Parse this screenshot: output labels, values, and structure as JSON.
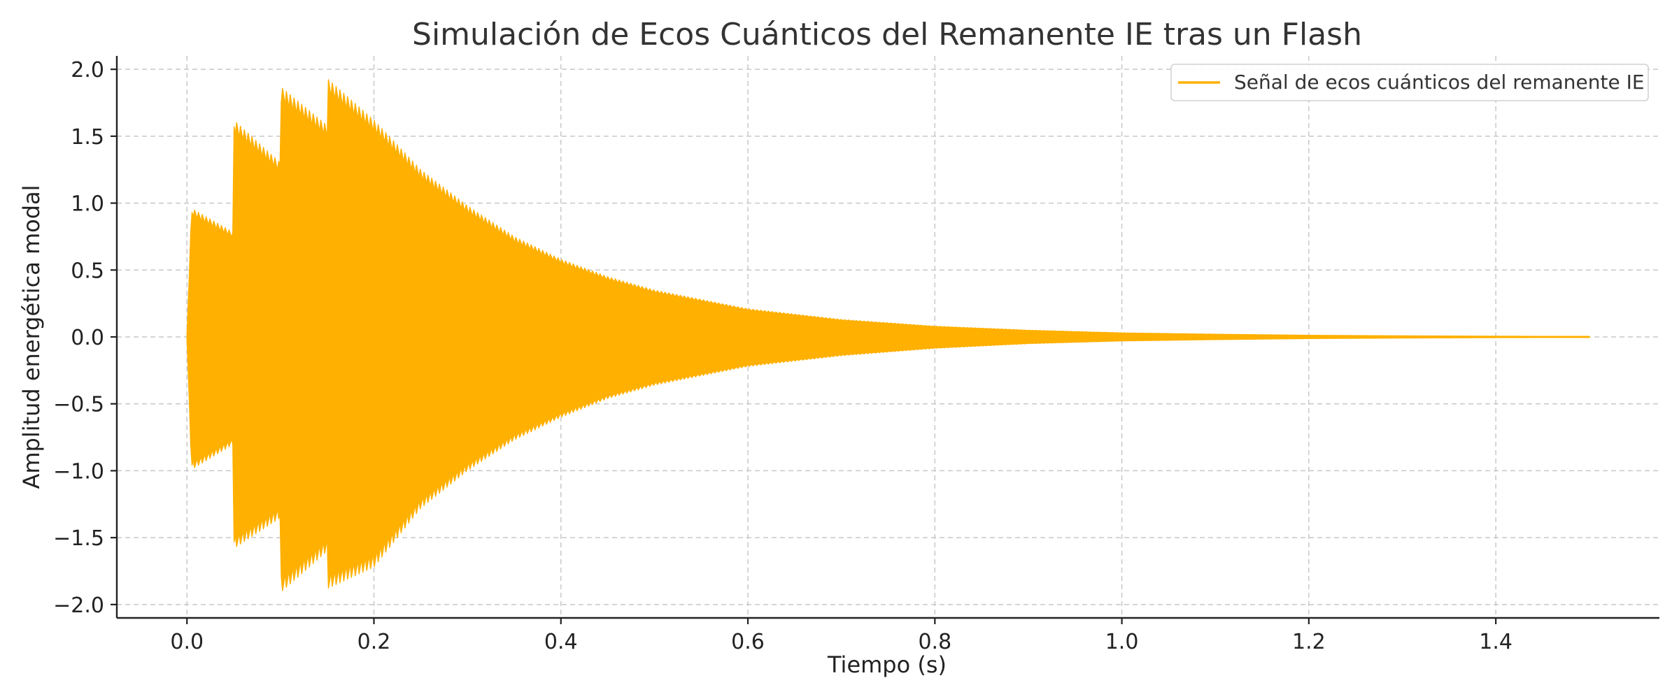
{
  "chart_data": {
    "type": "line",
    "title": "Simulación de Ecos Cuánticos del Remanente IE tras un Flash",
    "xlabel": "Tiempo (s)",
    "ylabel": "Amplitud energética modal",
    "xlim": [
      -0.075,
      1.575
    ],
    "ylim": [
      -2.1,
      2.1
    ],
    "x_ticks": [
      0.0,
      0.2,
      0.4,
      0.6,
      0.8,
      1.0,
      1.2,
      1.4
    ],
    "x_tick_labels": [
      "0.0",
      "0.2",
      "0.4",
      "0.6",
      "0.8",
      "1.0",
      "1.2",
      "1.4"
    ],
    "y_ticks": [
      -2.0,
      -1.5,
      -1.0,
      -0.5,
      0.0,
      0.5,
      1.0,
      1.5,
      2.0
    ],
    "y_tick_labels": [
      "−2.0",
      "−1.5",
      "−1.0",
      "−0.5",
      "0.0",
      "0.5",
      "1.0",
      "1.5",
      "2.0"
    ],
    "grid": true,
    "legend_position": "top-right",
    "series": [
      {
        "name": "Señal de ecos cuánticos del remanente IE",
        "color": "#FFB000",
        "x_range": [
          0.0,
          1.5
        ],
        "envelope": {
          "x": [
            0.0,
            0.005,
            0.05,
            0.0501,
            0.1,
            0.1001,
            0.15,
            0.1501,
            0.2,
            0.25,
            0.3,
            0.35,
            0.4,
            0.45,
            0.5,
            0.6,
            0.7,
            0.8,
            0.9,
            1.0,
            1.1,
            1.2,
            1.3,
            1.4,
            1.5
          ],
          "upper": [
            0.0,
            0.96,
            0.78,
            1.62,
            1.3,
            1.87,
            1.58,
            1.93,
            1.62,
            1.25,
            0.98,
            0.75,
            0.58,
            0.45,
            0.35,
            0.21,
            0.13,
            0.08,
            0.05,
            0.03,
            0.02,
            0.012,
            0.008,
            0.005,
            0.003
          ],
          "lower": [
            0.0,
            -0.99,
            -0.8,
            -1.58,
            -1.35,
            -1.91,
            -1.6,
            -1.88,
            -1.72,
            -1.28,
            -1.0,
            -0.77,
            -0.6,
            -0.46,
            -0.36,
            -0.22,
            -0.14,
            -0.085,
            -0.05,
            -0.03,
            -0.02,
            -0.012,
            -0.008,
            -0.005,
            -0.003
          ]
        }
      }
    ]
  }
}
